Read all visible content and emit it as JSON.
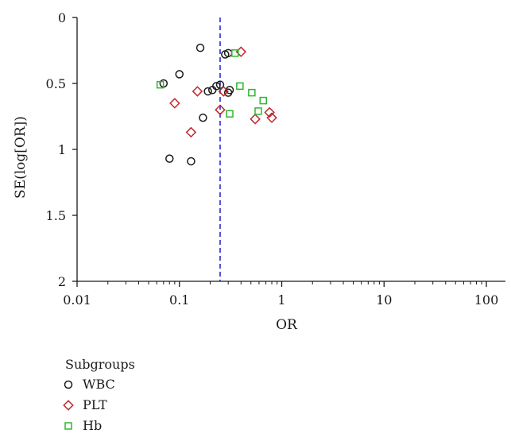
{
  "chart_data": {
    "type": "scatter",
    "title": "",
    "xlabel": "OR",
    "ylabel": "SE(log[OR])",
    "x_scale": "log",
    "xlim": [
      0.01,
      100
    ],
    "ylim": [
      0,
      2
    ],
    "y_reversed": true,
    "x_ticks": [
      0.01,
      0.1,
      1,
      10,
      100
    ],
    "x_tick_labels": [
      "0.01",
      "0.1",
      "1",
      "10",
      "100"
    ],
    "y_ticks": [
      0,
      0.5,
      1,
      1.5,
      2
    ],
    "y_tick_labels": [
      "0",
      "0.5",
      "1",
      "1.5",
      "2"
    ],
    "grid": false,
    "reference_line": {
      "x": 0.25,
      "style": "dashed",
      "color": "#2a2acc"
    },
    "legend": {
      "title": "Subgroups",
      "position": "bottom-left"
    },
    "series": [
      {
        "name": "WBC",
        "marker": "circle",
        "color": "#1a1a1a",
        "points": [
          {
            "x": 0.16,
            "y": 0.23
          },
          {
            "x": 0.28,
            "y": 0.28
          },
          {
            "x": 0.3,
            "y": 0.27
          },
          {
            "x": 0.1,
            "y": 0.43
          },
          {
            "x": 0.07,
            "y": 0.5
          },
          {
            "x": 0.19,
            "y": 0.56
          },
          {
            "x": 0.21,
            "y": 0.55
          },
          {
            "x": 0.23,
            "y": 0.52
          },
          {
            "x": 0.25,
            "y": 0.51
          },
          {
            "x": 0.3,
            "y": 0.57
          },
          {
            "x": 0.31,
            "y": 0.55
          },
          {
            "x": 0.17,
            "y": 0.76
          },
          {
            "x": 0.08,
            "y": 1.07
          },
          {
            "x": 0.13,
            "y": 1.09
          }
        ]
      },
      {
        "name": "PLT",
        "marker": "diamond",
        "color": "#c0282d",
        "points": [
          {
            "x": 0.4,
            "y": 0.26
          },
          {
            "x": 0.15,
            "y": 0.56
          },
          {
            "x": 0.27,
            "y": 0.56
          },
          {
            "x": 0.09,
            "y": 0.65
          },
          {
            "x": 0.25,
            "y": 0.7
          },
          {
            "x": 0.13,
            "y": 0.87
          },
          {
            "x": 0.55,
            "y": 0.77
          },
          {
            "x": 0.76,
            "y": 0.72
          },
          {
            "x": 0.8,
            "y": 0.76
          }
        ]
      },
      {
        "name": "Hb",
        "marker": "square",
        "color": "#2db82d",
        "points": [
          {
            "x": 0.35,
            "y": 0.27
          },
          {
            "x": 0.065,
            "y": 0.51
          },
          {
            "x": 0.39,
            "y": 0.52
          },
          {
            "x": 0.51,
            "y": 0.57
          },
          {
            "x": 0.66,
            "y": 0.63
          },
          {
            "x": 0.59,
            "y": 0.71
          },
          {
            "x": 0.31,
            "y": 0.73
          }
        ]
      }
    ]
  }
}
